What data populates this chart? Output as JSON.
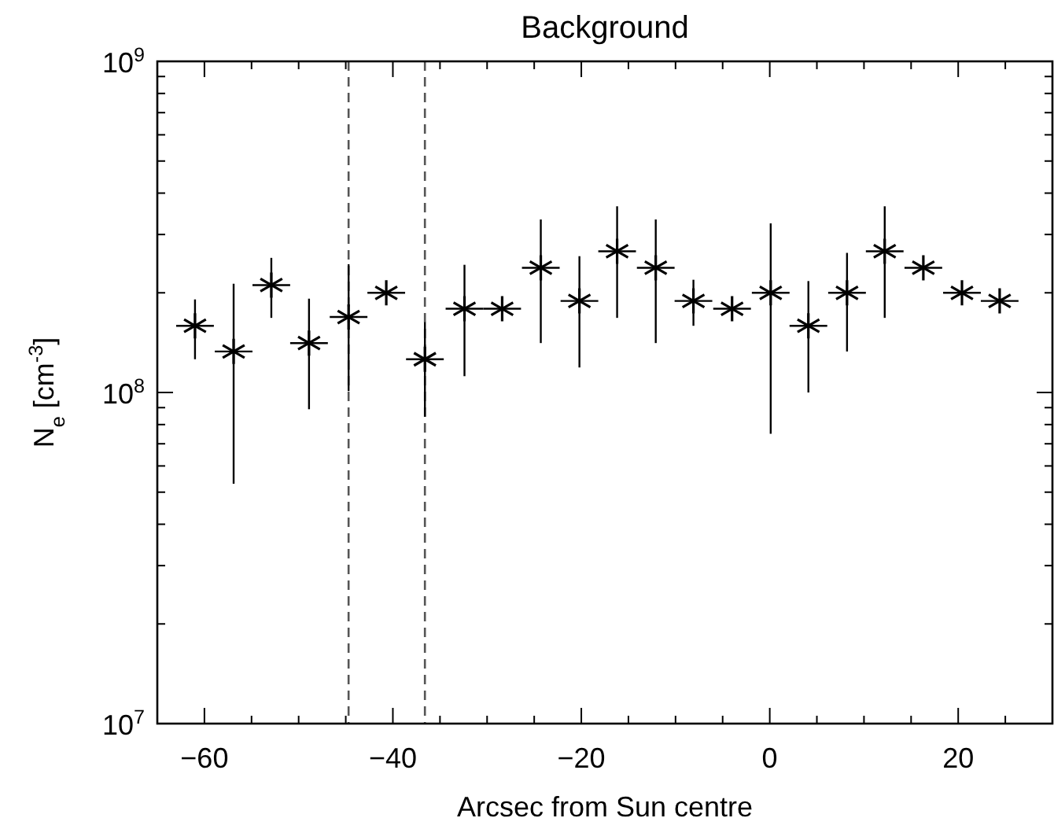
{
  "chart_data": {
    "type": "scatter",
    "title": "Background",
    "xlabel": "Arcsec from Sun centre",
    "ylabel": "N$_{e}$ [cm$^{-3}$]",
    "x": [
      -61,
      -56.9,
      -52.9,
      -48.9,
      -44.7,
      -40.7,
      -36.6,
      -32.4,
      -28.4,
      -24.3,
      -20.2,
      -16.2,
      -12.1,
      -8.1,
      -4,
      0.1,
      4.1,
      8.2,
      12.2,
      16.3,
      20.4,
      24.4
    ],
    "series": [
      {
        "color": "#000000",
        "values": [
          159000000.0,
          133000000.0,
          211000000.0,
          141000000.0,
          169000000.0,
          200000000.0,
          126000000.0,
          179000000.0,
          179000000.0,
          238000000.0,
          189000000.0,
          267000000.0,
          238000000.0,
          189000000.0,
          179000000.0,
          200000000.0,
          159000000.0,
          200000000.0,
          267000000.0,
          238000000.0,
          200000000.0,
          189000000.0
        ],
        "errors": [
          [
            126000000.0,
            191000000.0
          ],
          [
            53000000.0,
            213000000.0
          ],
          [
            168000000.0,
            255000000.0
          ],
          [
            89000000.0,
            192000000.0
          ],
          [
            101000000.0,
            244000000.0
          ],
          null,
          [
            84500000.0,
            163000000.0
          ],
          [
            112000000.0,
            243000000.0
          ],
          null,
          [
            141000000.0,
            333000000.0
          ],
          [
            119000000.0,
            258000000.0
          ],
          [
            168000000.0,
            365000000.0
          ],
          [
            141000000.0,
            333000000.0
          ],
          [
            159000000.0,
            219000000.0
          ],
          null,
          [
            75000000.0,
            324000000.0
          ],
          [
            100000000.0,
            217000000.0
          ],
          [
            133000000.0,
            264000000.0
          ],
          [
            168000000.0,
            365000000.0
          ],
          null,
          null,
          null
        ],
        "xerrors": [
          2,
          2,
          2,
          2,
          2,
          2,
          2,
          2,
          2,
          2,
          2,
          2,
          2,
          2,
          2,
          2,
          2,
          2,
          2,
          2,
          2,
          2
        ]
      }
    ],
    "marker": "cross",
    "log": "y",
    "xlim": [
      -65,
      30
    ],
    "xticks": [
      {
        "value": -65,
        "label": null
      },
      -60,
      {
        "value": -55,
        "label": null
      },
      {
        "value": -50,
        "label": null
      },
      {
        "value": -45,
        "label": null
      },
      -40,
      {
        "value": -35,
        "label": null
      },
      {
        "value": -30,
        "label": null
      },
      {
        "value": -25,
        "label": null
      },
      -20,
      {
        "value": -15,
        "label": null
      },
      {
        "value": -10,
        "label": null
      },
      {
        "value": -5,
        "label": null
      },
      0,
      {
        "value": 5,
        "label": null
      },
      {
        "value": 10,
        "label": null
      },
      {
        "value": 15,
        "label": null
      },
      20,
      {
        "value": 25,
        "label": null
      }
    ],
    "ylim": [
      10000000.0,
      1000000000.0
    ],
    "yticks": [
      {
        "value": 10000000.0,
        "label": "10$^{7}$"
      },
      {
        "value": 20000000.0,
        "label": null
      },
      {
        "value": 30000000.0,
        "label": null
      },
      {
        "value": 40000000.0,
        "label": null
      },
      {
        "value": 50000000.0,
        "label": null
      },
      {
        "value": 60000000.0,
        "label": null
      },
      {
        "value": 70000000.0,
        "label": null
      },
      {
        "value": 80000000.0,
        "label": null
      },
      {
        "value": 90000000.0,
        "label": null
      },
      {
        "value": 100000000.0,
        "label": "10$^{8}$"
      },
      {
        "value": 200000000.0,
        "label": null
      },
      {
        "value": 300000000.0,
        "label": null
      },
      {
        "value": 400000000.0,
        "label": null
      },
      {
        "value": 500000000.0,
        "label": null
      },
      {
        "value": 600000000.0,
        "label": null
      },
      {
        "value": 700000000.0,
        "label": null
      },
      {
        "value": 800000000.0,
        "label": null
      },
      {
        "value": 900000000.0,
        "label": null
      },
      {
        "value": 1000000000.0,
        "label": "10$^{9}$"
      }
    ],
    "ref_lines": [
      {
        "axis": "x",
        "value": -44.7,
        "color": "#555555",
        "line_style": "dashed"
      },
      {
        "axis": "x",
        "value": -36.6,
        "color": "#555555",
        "line_style": "dashed"
      }
    ]
  }
}
